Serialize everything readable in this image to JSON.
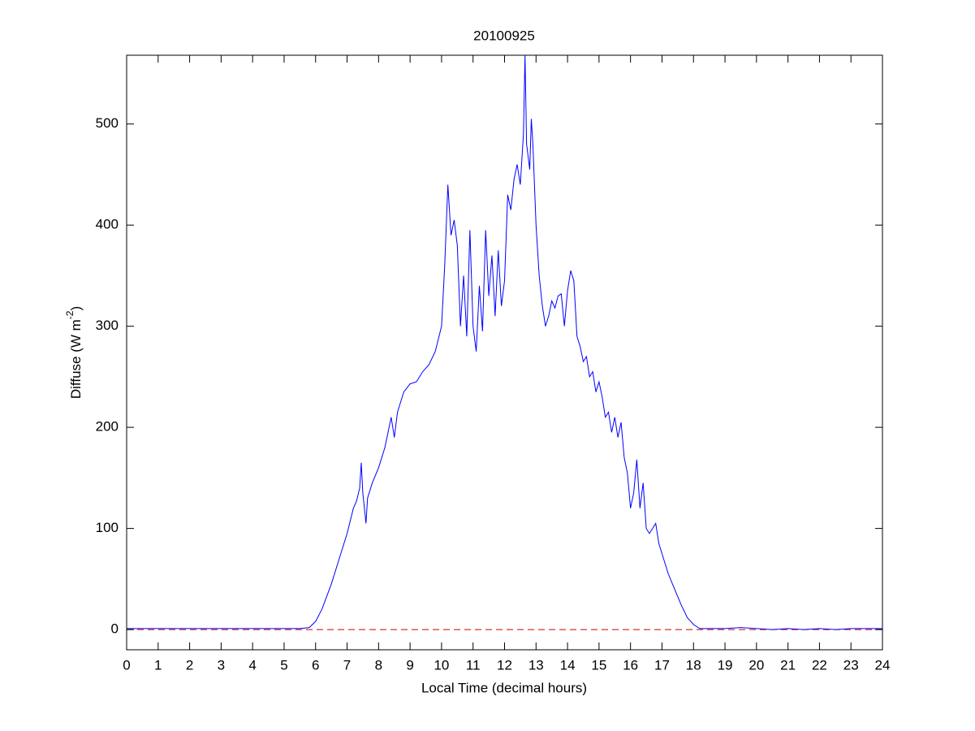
{
  "chart_data": {
    "type": "line",
    "title": "20100925",
    "x_label": "Local Time (decimal hours)",
    "y_label": [
      "Diffuse (W m",
      "-2",
      ")"
    ],
    "x": [
      0,
      2,
      4,
      5.5,
      5.8,
      6.0,
      6.2,
      6.5,
      6.8,
      7.0,
      7.2,
      7.3,
      7.4,
      7.45,
      7.5,
      7.6,
      7.65,
      7.8,
      8.0,
      8.2,
      8.4,
      8.5,
      8.6,
      8.8,
      9.0,
      9.2,
      9.4,
      9.6,
      9.8,
      10.0,
      10.1,
      10.2,
      10.3,
      10.4,
      10.5,
      10.6,
      10.7,
      10.8,
      10.9,
      11.0,
      11.1,
      11.2,
      11.3,
      11.4,
      11.5,
      11.6,
      11.7,
      11.8,
      11.9,
      12.0,
      12.1,
      12.2,
      12.3,
      12.4,
      12.5,
      12.6,
      12.65,
      12.7,
      12.8,
      12.85,
      12.9,
      13.0,
      13.1,
      13.2,
      13.3,
      13.4,
      13.5,
      13.6,
      13.7,
      13.8,
      13.9,
      14.0,
      14.1,
      14.2,
      14.3,
      14.4,
      14.5,
      14.6,
      14.7,
      14.8,
      14.9,
      15.0,
      15.1,
      15.2,
      15.3,
      15.4,
      15.5,
      15.6,
      15.7,
      15.8,
      15.9,
      16.0,
      16.1,
      16.2,
      16.3,
      16.4,
      16.5,
      16.6,
      16.7,
      16.8,
      16.9,
      17.0,
      17.2,
      17.4,
      17.6,
      17.8,
      18.0,
      18.2,
      18.5,
      19.0,
      19.5,
      20.0,
      20.5,
      21.0,
      21.5,
      22.0,
      22.5,
      23.0,
      24
    ],
    "series": [
      {
        "color": "#0000ff",
        "values": [
          1,
          1,
          1,
          1,
          2,
          8,
          20,
          45,
          75,
          95,
          120,
          127,
          140,
          165,
          135,
          105,
          130,
          145,
          160,
          180,
          210,
          190,
          215,
          235,
          243,
          245,
          255,
          262,
          275,
          300,
          360,
          440,
          390,
          405,
          380,
          300,
          350,
          290,
          395,
          300,
          275,
          340,
          295,
          395,
          330,
          370,
          310,
          375,
          320,
          345,
          430,
          415,
          445,
          460,
          440,
          490,
          568,
          480,
          455,
          505,
          480,
          400,
          350,
          320,
          300,
          310,
          325,
          318,
          330,
          332,
          300,
          335,
          355,
          345,
          290,
          280,
          265,
          270,
          250,
          255,
          235,
          245,
          230,
          210,
          215,
          195,
          210,
          190,
          205,
          170,
          155,
          120,
          135,
          168,
          120,
          145,
          100,
          95,
          100,
          105,
          85,
          75,
          55,
          40,
          25,
          12,
          5,
          1,
          1,
          1,
          2,
          1,
          0,
          1,
          0,
          1,
          0,
          1,
          1
        ]
      }
    ],
    "reference_line": {
      "value": 0,
      "color": "#cc0000"
    },
    "xlim": [
      0,
      24
    ],
    "ylim": [
      -20,
      568
    ],
    "xticks": [
      0,
      1,
      2,
      3,
      4,
      5,
      6,
      7,
      8,
      9,
      10,
      11,
      12,
      13,
      14,
      15,
      16,
      17,
      18,
      19,
      20,
      21,
      22,
      23,
      24
    ],
    "yticks": [
      0,
      100,
      200,
      300,
      400,
      500
    ]
  }
}
